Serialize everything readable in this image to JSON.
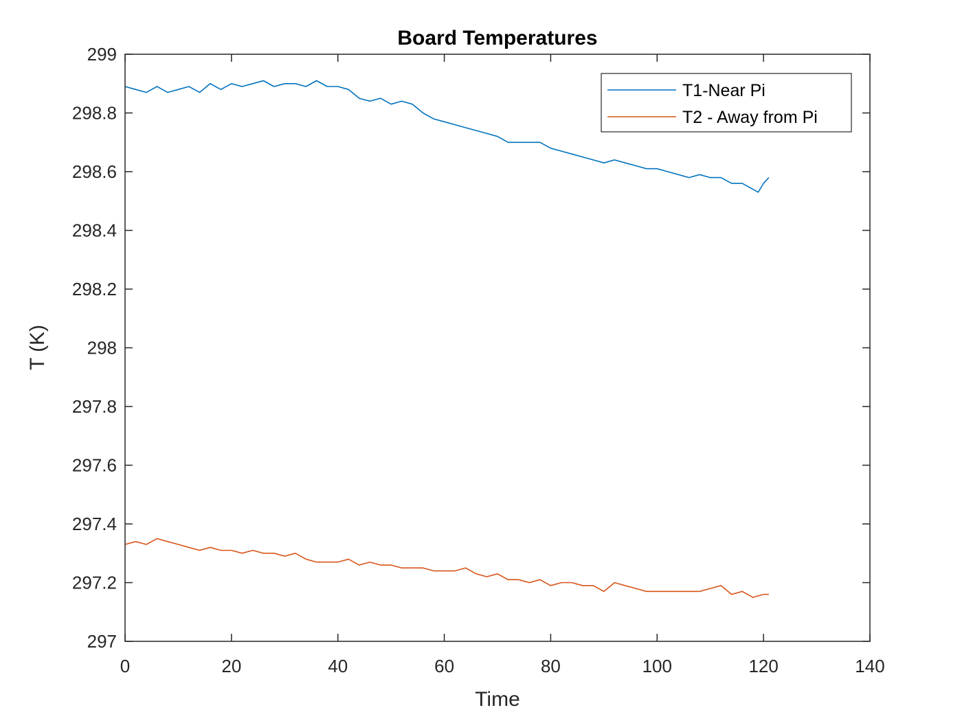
{
  "chart_data": {
    "type": "line",
    "title": "Board Temperatures",
    "xlabel": "Time",
    "ylabel": "T (K)",
    "xlim": [
      0,
      140
    ],
    "ylim": [
      297,
      299
    ],
    "xticks": [
      0,
      20,
      40,
      60,
      80,
      100,
      120,
      140
    ],
    "xtick_labels": [
      "0",
      "20",
      "40",
      "60",
      "80",
      "100",
      "120",
      "140"
    ],
    "yticks": [
      297,
      297.2,
      297.4,
      297.6,
      297.8,
      298,
      298.2,
      298.4,
      298.6,
      298.8,
      299
    ],
    "ytick_labels": [
      "297",
      "297.2",
      "297.4",
      "297.6",
      "297.8",
      "298",
      "298.2",
      "298.4",
      "298.6",
      "298.8",
      "299"
    ],
    "grid": false,
    "legend_position": "top-right",
    "series": [
      {
        "name": "T1-Near Pi",
        "color": "#0072BD",
        "x": [
          0,
          2,
          4,
          6,
          8,
          10,
          12,
          14,
          16,
          18,
          20,
          22,
          24,
          26,
          28,
          30,
          32,
          34,
          36,
          38,
          40,
          42,
          44,
          46,
          48,
          50,
          52,
          54,
          56,
          58,
          60,
          62,
          64,
          66,
          68,
          70,
          72,
          74,
          76,
          78,
          80,
          82,
          84,
          86,
          88,
          90,
          92,
          94,
          96,
          98,
          100,
          102,
          104,
          106,
          108,
          110,
          112,
          114,
          116,
          118,
          119,
          120,
          121
        ],
        "y": [
          298.89,
          298.88,
          298.87,
          298.89,
          298.87,
          298.88,
          298.89,
          298.87,
          298.9,
          298.88,
          298.9,
          298.89,
          298.9,
          298.91,
          298.89,
          298.9,
          298.9,
          298.89,
          298.91,
          298.89,
          298.89,
          298.88,
          298.85,
          298.84,
          298.85,
          298.83,
          298.84,
          298.83,
          298.8,
          298.78,
          298.77,
          298.76,
          298.75,
          298.74,
          298.73,
          298.72,
          298.7,
          298.7,
          298.7,
          298.7,
          298.68,
          298.67,
          298.66,
          298.65,
          298.64,
          298.63,
          298.64,
          298.63,
          298.62,
          298.61,
          298.61,
          298.6,
          298.59,
          298.58,
          298.59,
          298.58,
          298.58,
          298.56,
          298.56,
          298.54,
          298.53,
          298.56,
          298.58
        ]
      },
      {
        "name": "T2 - Away from Pi",
        "color": "#D95319",
        "x": [
          0,
          2,
          4,
          6,
          8,
          10,
          12,
          14,
          16,
          18,
          20,
          22,
          24,
          26,
          28,
          30,
          32,
          34,
          36,
          38,
          40,
          42,
          44,
          46,
          48,
          50,
          52,
          54,
          56,
          58,
          60,
          62,
          64,
          66,
          68,
          70,
          72,
          74,
          76,
          78,
          80,
          82,
          84,
          86,
          88,
          90,
          92,
          94,
          96,
          98,
          100,
          102,
          104,
          106,
          108,
          110,
          112,
          114,
          116,
          118,
          120,
          121
        ],
        "y": [
          297.33,
          297.34,
          297.33,
          297.35,
          297.34,
          297.33,
          297.32,
          297.31,
          297.32,
          297.31,
          297.31,
          297.3,
          297.31,
          297.3,
          297.3,
          297.29,
          297.3,
          297.28,
          297.27,
          297.27,
          297.27,
          297.28,
          297.26,
          297.27,
          297.26,
          297.26,
          297.25,
          297.25,
          297.25,
          297.24,
          297.24,
          297.24,
          297.25,
          297.23,
          297.22,
          297.23,
          297.21,
          297.21,
          297.2,
          297.21,
          297.19,
          297.2,
          297.2,
          297.19,
          297.19,
          297.17,
          297.2,
          297.19,
          297.18,
          297.17,
          297.17,
          297.17,
          297.17,
          297.17,
          297.17,
          297.18,
          297.19,
          297.16,
          297.17,
          297.15,
          297.16,
          297.16
        ]
      }
    ]
  }
}
